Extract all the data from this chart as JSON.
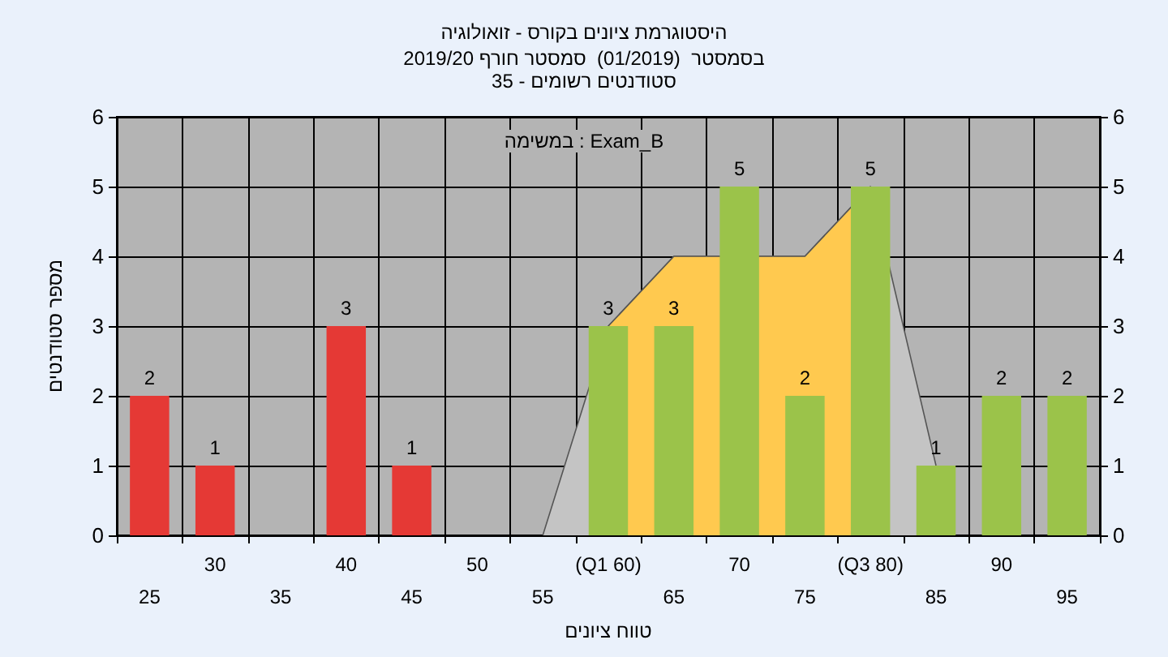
{
  "chart_data": {
    "type": "bar",
    "title": "היסטוגרמת ציונים בקורס - זואולוגיה",
    "subtitle": "בסמסטר  (01/2019)  סמסטר חורף 2019/20\nסטודנטים רשומים - 35",
    "xlabel": "טווח ציונים",
    "ylabel": "מספר סטודנטים",
    "annotations": [
      "במשימה : Exam_B"
    ],
    "categories": [
      "25",
      "30",
      "35",
      "40",
      "45",
      "50",
      "55",
      "(Q1 60)",
      "65",
      "70",
      "75",
      "(Q3 80)",
      "85",
      "90",
      "95"
    ],
    "series": [
      {
        "type": "area",
        "color": "#c4c4c4",
        "values": [
          null,
          null,
          null,
          null,
          null,
          null,
          0,
          3,
          4,
          null,
          4,
          5,
          1,
          null,
          null
        ]
      },
      {
        "type": "area",
        "color": "#ffc94f",
        "values": [
          null,
          null,
          null,
          null,
          null,
          null,
          null,
          3,
          4,
          null,
          4,
          5,
          null,
          null,
          null
        ]
      },
      {
        "values": [
          2,
          1,
          null,
          3,
          1,
          null,
          null,
          3,
          3,
          5,
          2,
          5,
          1,
          2,
          2
        ],
        "value_labels": [
          "2",
          "1",
          null,
          "3",
          "1",
          null,
          null,
          "3",
          "3",
          "5",
          "2",
          "5",
          "1",
          "2",
          "2"
        ],
        "colors": [
          "#e53935",
          "#e53935",
          "#e53935",
          "#e53935",
          "#e53935",
          "#e53935",
          "#e53935",
          "#9bc34a",
          "#9bc34a",
          "#9bc34a",
          "#9bc34a",
          "#9bc34a",
          "#9bc34a",
          "#9bc34a",
          "#9bc34a"
        ]
      }
    ],
    "ylim": [
      0,
      6
    ],
    "yticks": [
      0,
      1,
      2,
      3,
      4,
      5,
      6
    ],
    "y2lim": [
      0,
      6
    ],
    "y2ticks": [
      0,
      1,
      2,
      3,
      4,
      5,
      6
    ],
    "grid": true
  }
}
